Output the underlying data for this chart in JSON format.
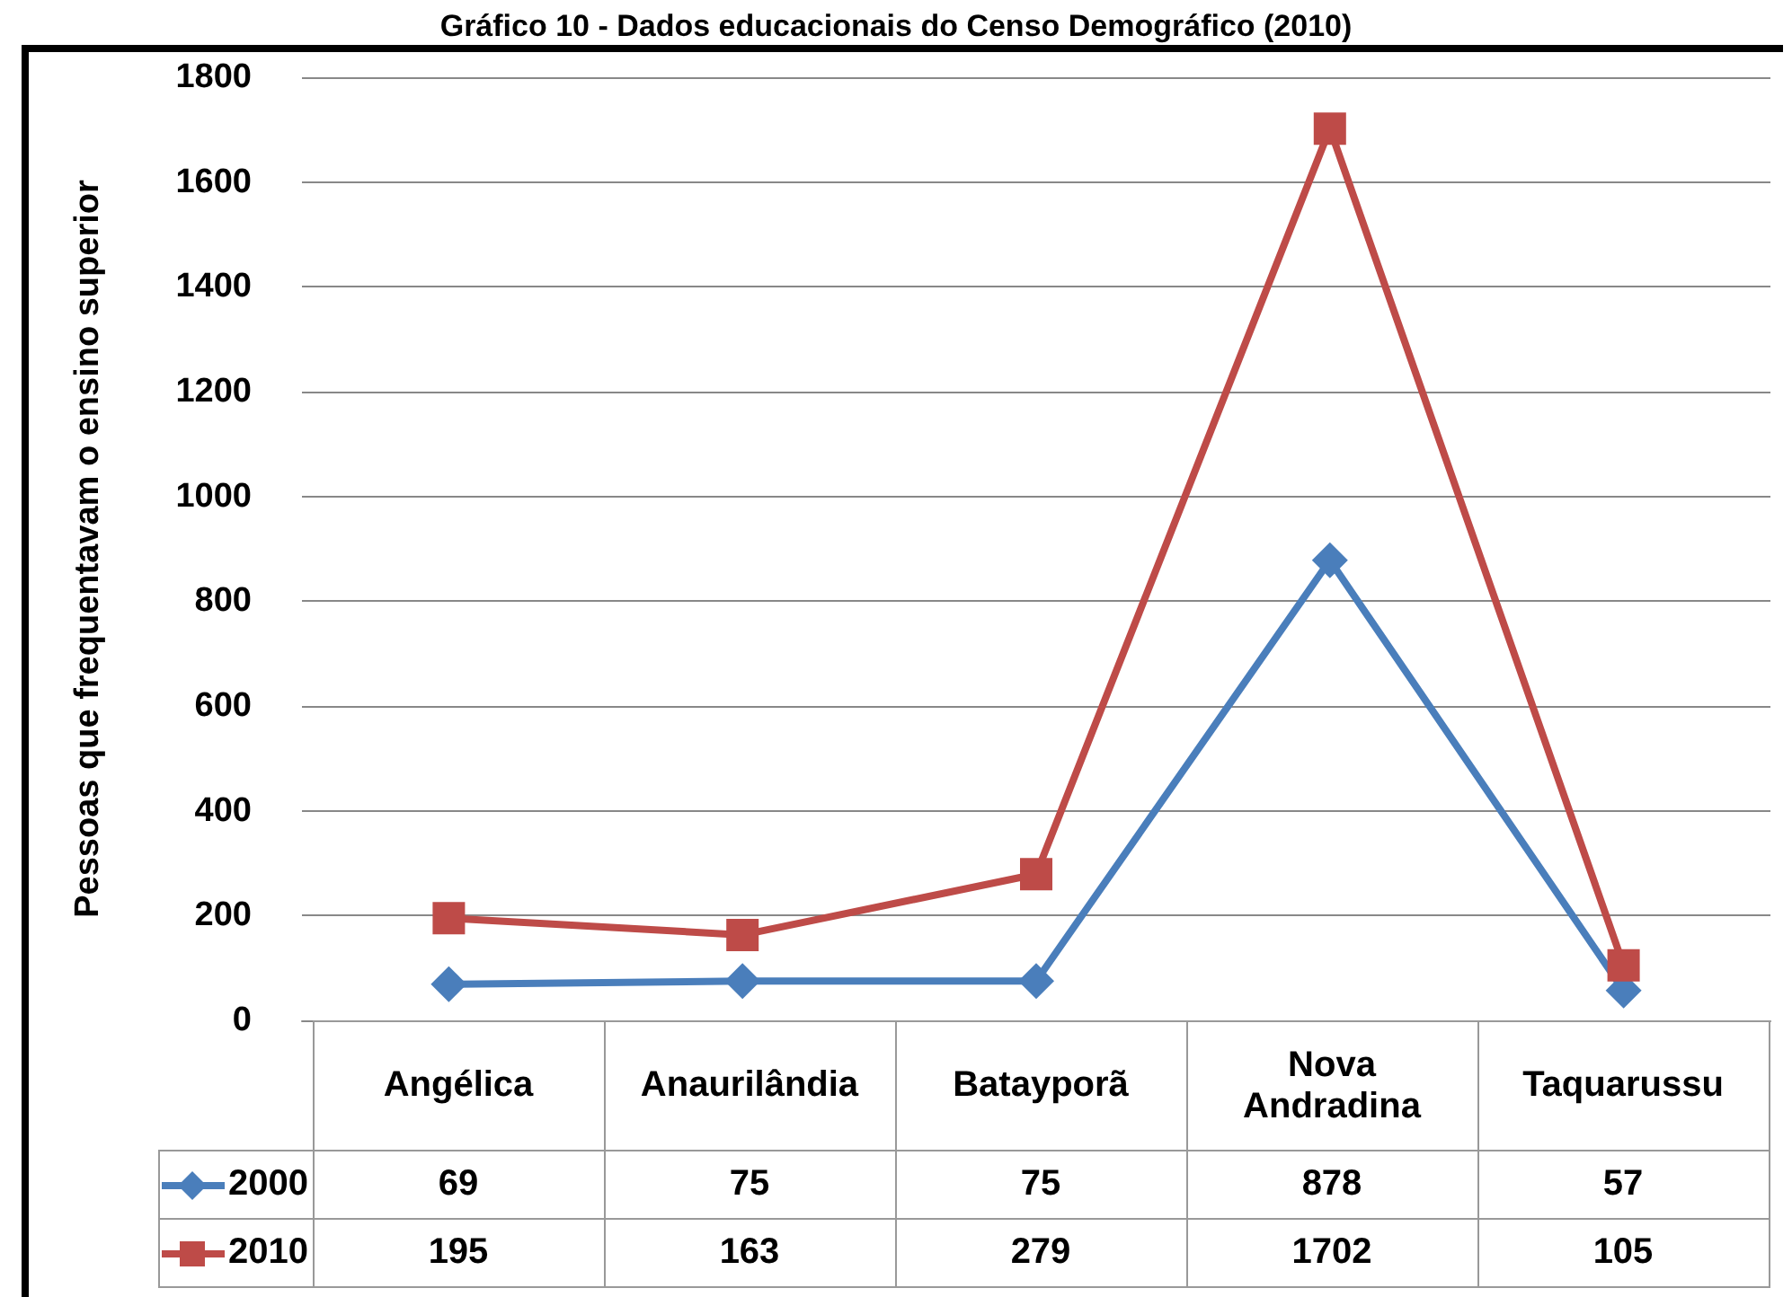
{
  "chart_data": {
    "type": "line",
    "title": "Gráfico 10 - Dados educacionais do Censo Demográfico (2010)",
    "ylabel": "Pessoas que frequentavam o ensino superior",
    "categories": [
      "Angélica",
      "Anaurilândia",
      "Batayporã",
      "Nova Andradina",
      "Taquarussu"
    ],
    "series": [
      {
        "name": "2000",
        "color": "#4a7ebb",
        "marker": "diamond",
        "values": [
          69,
          75,
          75,
          878,
          57
        ]
      },
      {
        "name": "2010",
        "color": "#be4b48",
        "marker": "square",
        "values": [
          195,
          163,
          279,
          1702,
          105
        ]
      }
    ],
    "ylim": [
      0,
      1800
    ],
    "yticks": [
      0,
      200,
      400,
      600,
      800,
      1000,
      1200,
      1400,
      1600,
      1800
    ],
    "grid": "y",
    "legend": "bottom",
    "data_labels": true
  }
}
